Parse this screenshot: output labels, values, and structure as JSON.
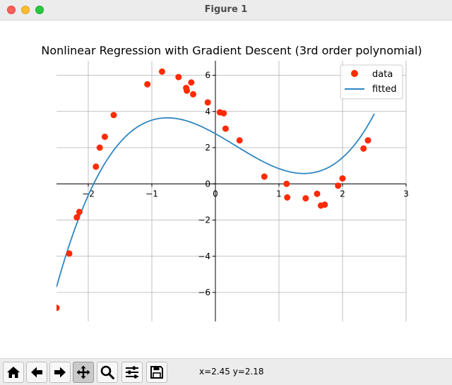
{
  "window": {
    "title": "Figure 1"
  },
  "toolbar": {
    "buttons": [
      {
        "name": "home",
        "icon": "home-icon"
      },
      {
        "name": "back",
        "icon": "arrow-left-icon"
      },
      {
        "name": "forward",
        "icon": "arrow-right-icon"
      },
      {
        "name": "pan",
        "icon": "move-icon",
        "active": true
      },
      {
        "name": "zoom",
        "icon": "magnifier-icon"
      },
      {
        "name": "configure-subplots",
        "icon": "sliders-icon"
      },
      {
        "name": "save",
        "icon": "floppy-disk-icon"
      }
    ],
    "coordinates": "x=2.45 y=2.18"
  },
  "colors": {
    "data_points": "#ff2a00",
    "fitted_line": "#2e86c1",
    "grid": "#b0b0b0",
    "axes": "#000000"
  },
  "chart_data": {
    "type": "scatter",
    "title": "Nonlinear Regression with Gradient Descent (3rd order polynomial)",
    "xlim": [
      -2.5,
      3
    ],
    "ylim": [
      -7.6,
      6.8
    ],
    "x_ticks": [
      -2,
      -1,
      0,
      1,
      2,
      3
    ],
    "x_tick_labels": [
      "−2",
      "−1",
      "0",
      "1",
      "2",
      "3"
    ],
    "y_ticks": [
      -6,
      -4,
      -2,
      0,
      2,
      4,
      6
    ],
    "y_tick_labels": [
      "−6",
      "−4",
      "−2",
      "0",
      "2",
      "4",
      "6"
    ],
    "grid": true,
    "spines": "centered",
    "legend": {
      "placement": "top-right",
      "entries": [
        "data",
        "fitted"
      ]
    },
    "series": [
      {
        "name": "data",
        "kind": "scatter",
        "x": [
          -2.5,
          -2.3,
          -2.18,
          -2.14,
          -1.88,
          -1.82,
          -1.74,
          -1.6,
          -1.07,
          -0.84,
          -0.58,
          -0.46,
          -0.45,
          -0.38,
          -0.35,
          -0.12,
          0.07,
          0.13,
          0.16,
          0.38,
          0.77,
          1.12,
          1.13,
          1.42,
          1.6,
          1.66,
          1.72,
          1.93,
          2.0,
          2.33,
          2.4
        ],
        "y": [
          -6.85,
          -3.85,
          -1.85,
          -1.55,
          0.95,
          2.0,
          2.6,
          3.8,
          5.5,
          6.2,
          5.9,
          5.3,
          5.15,
          5.6,
          4.95,
          4.5,
          3.95,
          3.9,
          3.05,
          2.4,
          0.4,
          0.0,
          -0.75,
          -0.8,
          -0.55,
          -1.2,
          -1.15,
          -0.1,
          0.3,
          1.95,
          2.4
        ]
      },
      {
        "name": "fitted",
        "kind": "line",
        "x_range": [
          -2.5,
          2.5
        ],
        "polynomial_coefficients": [
          2.77,
          -1.96,
          -0.59,
          0.62
        ]
      }
    ]
  }
}
